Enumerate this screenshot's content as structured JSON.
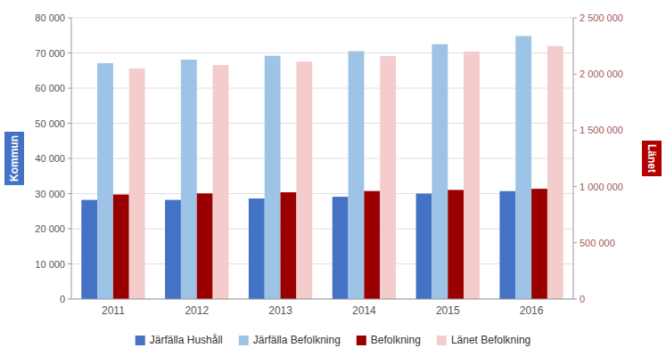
{
  "chart_data": {
    "type": "bar",
    "categories": [
      "2011",
      "2012",
      "2013",
      "2014",
      "2015",
      "2016"
    ],
    "series": [
      {
        "name": "Järfälla Hushåll",
        "color": "#4472C4",
        "values": [
          28200,
          28200,
          28600,
          29100,
          30000,
          30700
        ]
      },
      {
        "name": "Järfälla Befolkning",
        "color": "#9DC3E6",
        "values": [
          67100,
          68100,
          69200,
          70500,
          72500,
          74800
        ]
      },
      {
        "name": "Befolkning",
        "color": "#9B0000",
        "axis": "y2",
        "values": [
          929000,
          939000,
          949000,
          960000,
          970000,
          980000
        ]
      },
      {
        "name": "Länet Befolkning",
        "color": "#F4CCCC",
        "axis": "y2",
        "values": [
          2050000,
          2080000,
          2110000,
          2160000,
          2200000,
          2250000
        ]
      }
    ],
    "ylabel": "Kommun",
    "y2label": "Länet",
    "ylim": [
      0,
      80000
    ],
    "yticks": [
      0,
      {
        "value": 10000,
        "label": "10 000"
      },
      {
        "value": 20000,
        "label": "20 000"
      },
      {
        "value": 30000,
        "label": "30 000"
      },
      {
        "value": 40000,
        "label": "40 000"
      },
      {
        "value": 50000,
        "label": "50 000"
      },
      {
        "value": 60000,
        "label": "60 000"
      },
      {
        "value": 70000,
        "label": "70 000"
      },
      {
        "value": 80000,
        "label": "80 000"
      }
    ],
    "y2lim": [
      0,
      2500000
    ],
    "y2ticks": [
      0,
      {
        "value": 500000,
        "label": "500 000"
      },
      {
        "value": 1000000,
        "label": "1 000 000"
      },
      {
        "value": 1500000,
        "label": "1 500 000"
      },
      {
        "value": 2000000,
        "label": "2 000 000"
      },
      {
        "value": 2500000,
        "label": "2 500 000"
      }
    ],
    "grid": true,
    "legend": "bottom"
  }
}
